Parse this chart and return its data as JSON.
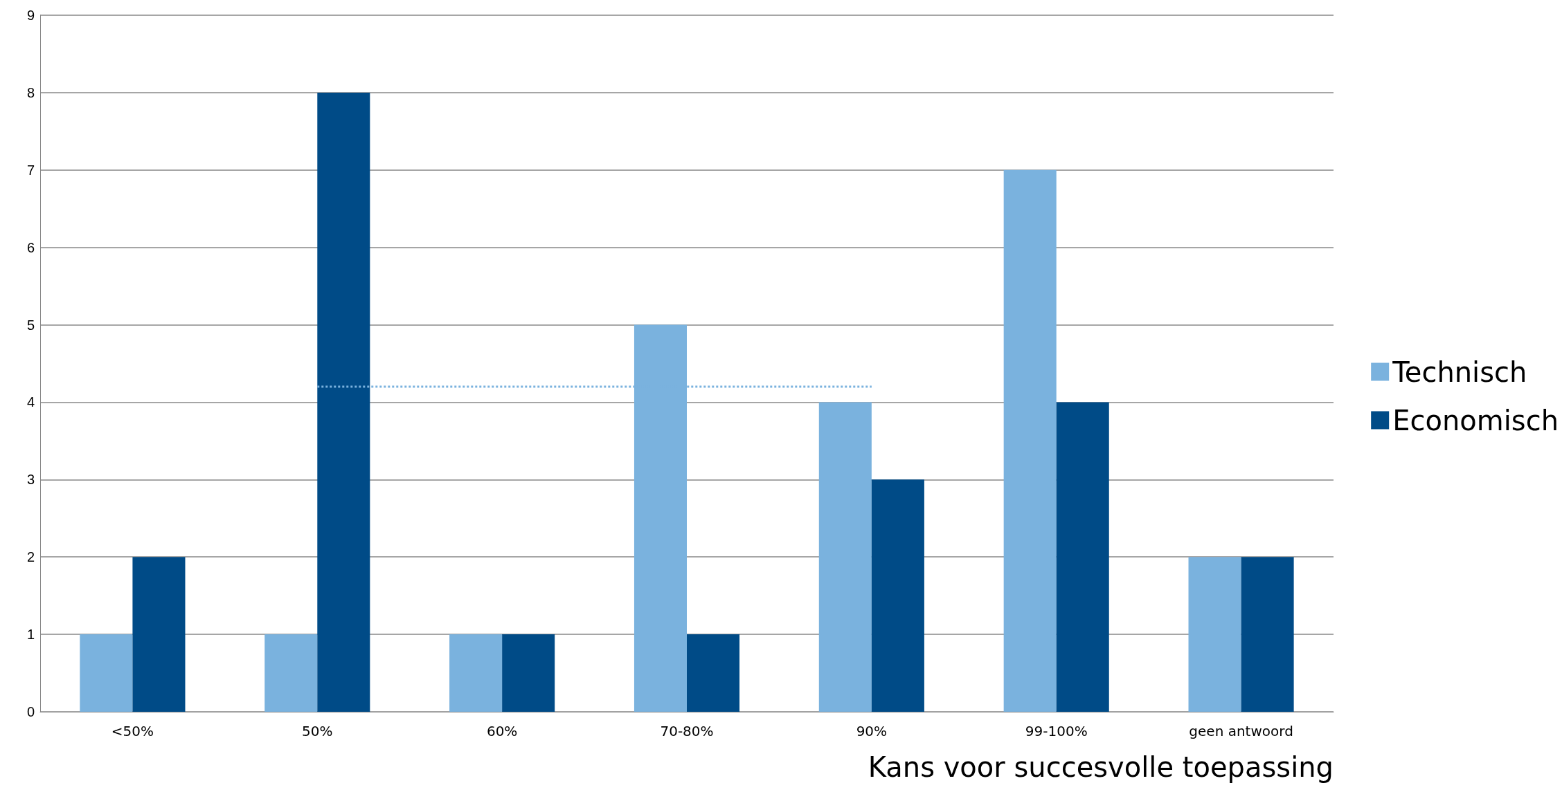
{
  "chart_data": {
    "type": "bar",
    "xlabel": "Kans voor succesvolle toepassing",
    "categories": [
      "<50%",
      "50%",
      "60%",
      "70-80%",
      "90%",
      "99-100%",
      "geen antwoord"
    ],
    "series": [
      {
        "name": "Technisch",
        "color": "#7ab2de",
        "values": [
          1,
          1,
          1,
          5,
          4,
          7,
          2
        ]
      },
      {
        "name": "Economisch",
        "color": "#004b87",
        "values": [
          2,
          8,
          1,
          1,
          3,
          4,
          2
        ]
      },
      {
        "type": "line",
        "x": [
          "50%",
          "90%"
        ],
        "values": [
          4.2,
          4.2
        ],
        "color": "#7ab2de",
        "line_style": "dotted",
        "marker": "none"
      }
    ],
    "ylim": [
      0,
      9
    ],
    "yticks": [
      0,
      1,
      2,
      3,
      4,
      5,
      6,
      7,
      8,
      9
    ],
    "grid": "y",
    "legend": "right"
  }
}
